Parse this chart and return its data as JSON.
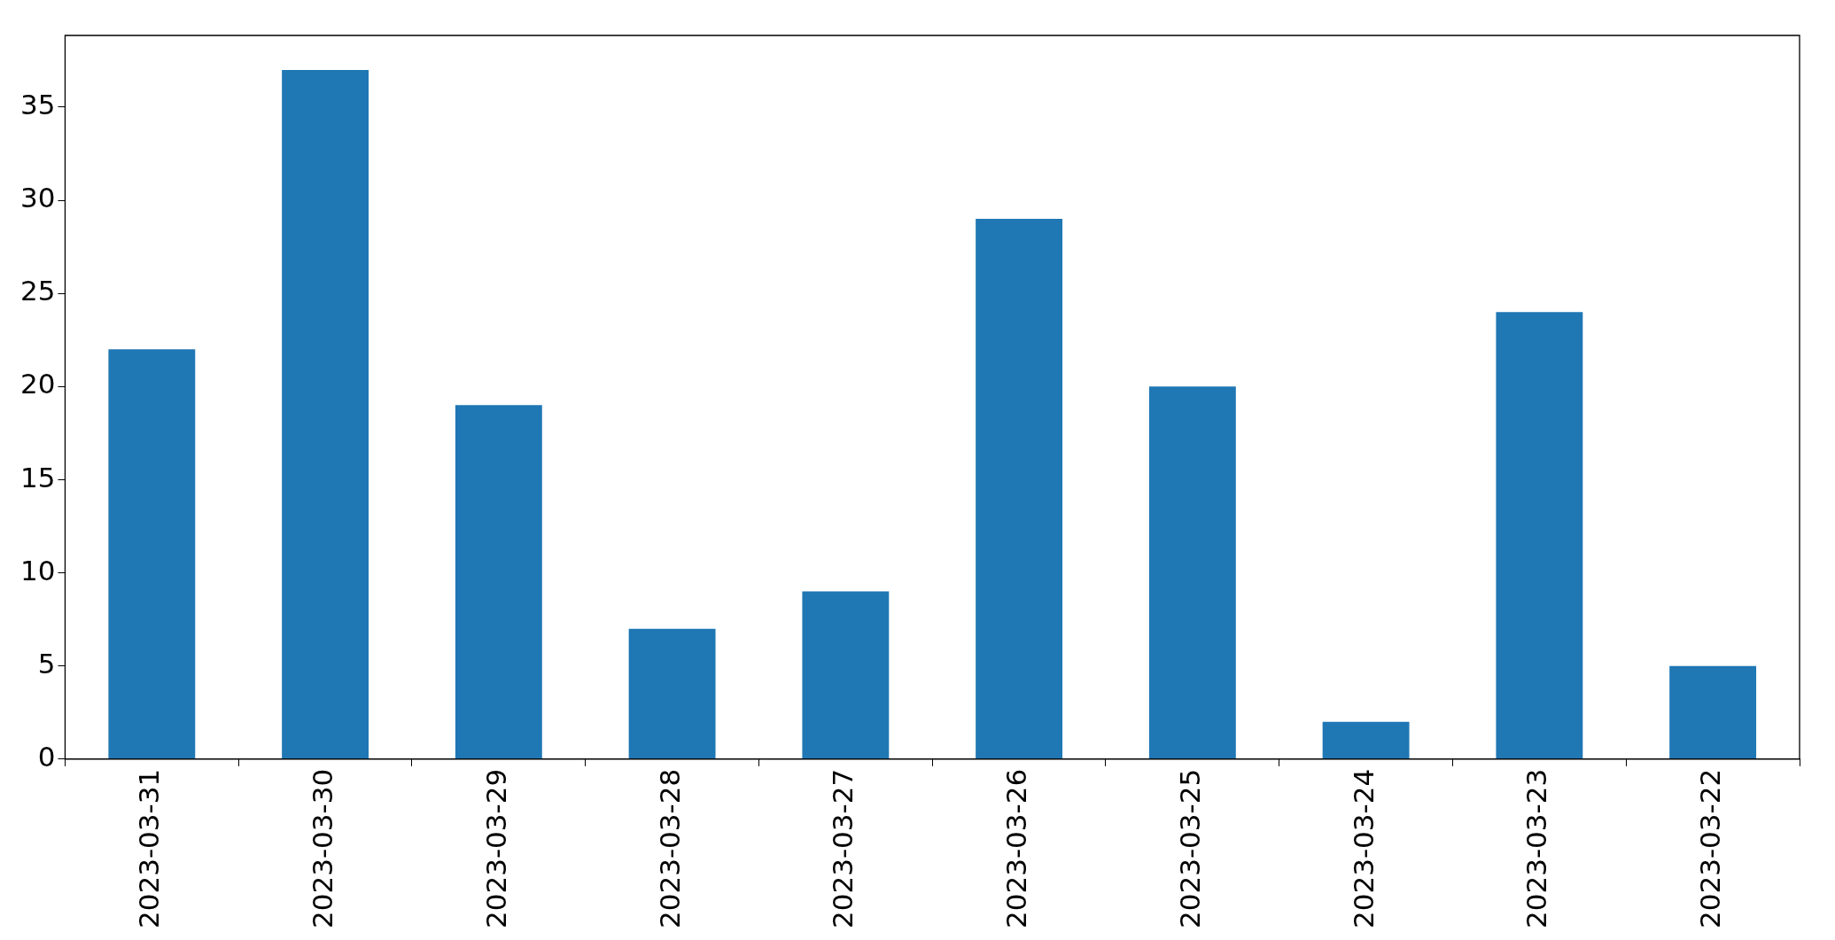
{
  "chart_data": {
    "type": "bar",
    "categories": [
      "2023-03-31",
      "2023-03-30",
      "2023-03-29",
      "2023-03-28",
      "2023-03-27",
      "2023-03-26",
      "2023-03-25",
      "2023-03-24",
      "2023-03-23",
      "2023-03-22"
    ],
    "values": [
      22,
      37,
      19,
      7,
      9,
      29,
      20,
      2,
      24,
      5
    ],
    "color": "#1f77b4",
    "ylim": [
      0,
      38.85
    ],
    "yticks": [
      0,
      5,
      10,
      15,
      20,
      25,
      30,
      35
    ]
  }
}
